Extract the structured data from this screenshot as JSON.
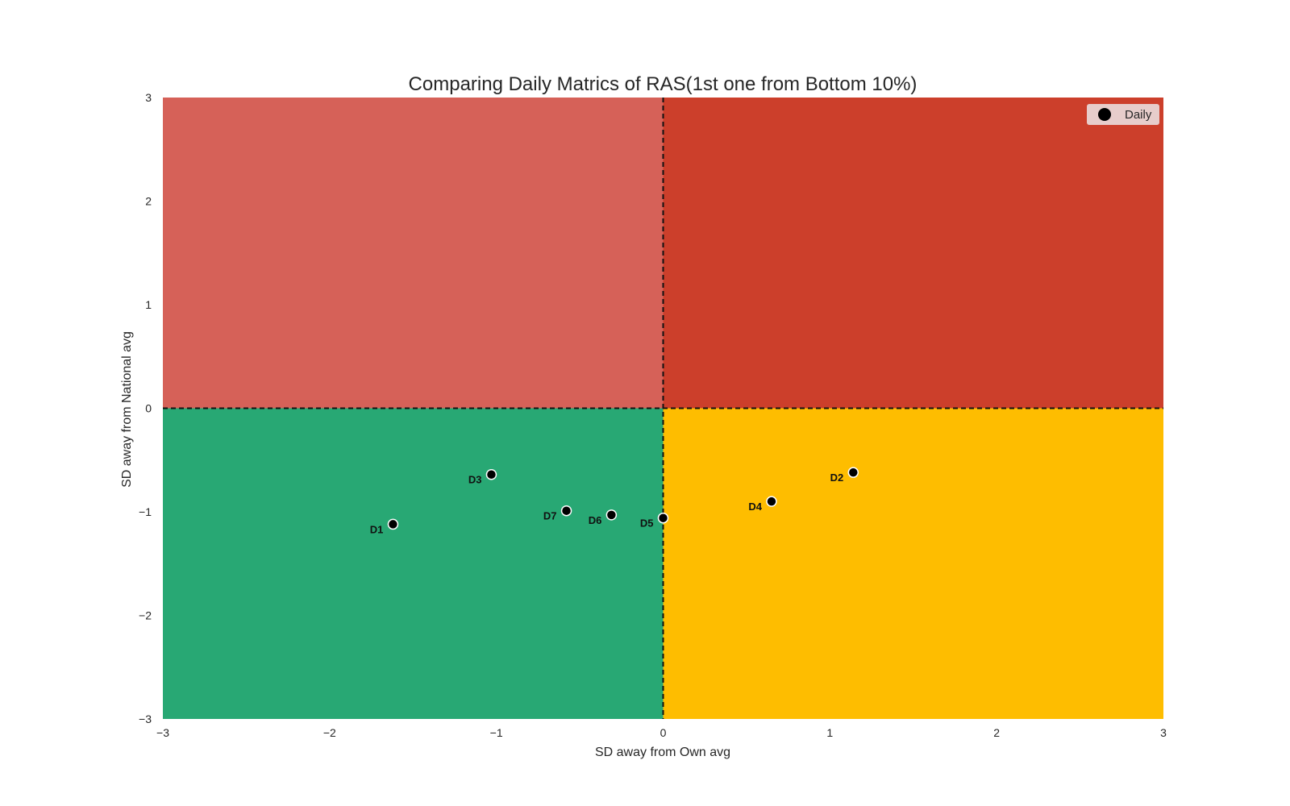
{
  "chart_data": {
    "type": "scatter",
    "title": "Comparing Daily Matrics of RAS(1st one from Bottom 10%)",
    "xlabel": "SD away from Own avg",
    "ylabel": "SD away from National avg",
    "xlim": [
      -3,
      3
    ],
    "ylim": [
      -3,
      3
    ],
    "xticks": [
      "−3",
      "−2",
      "−1",
      "0",
      "1",
      "2",
      "3"
    ],
    "yticks": [
      "−3",
      "−2",
      "−1",
      "0",
      "1",
      "2",
      "3"
    ],
    "grid": false,
    "legend": {
      "entries": [
        "Daily"
      ],
      "placement": "top-right"
    },
    "quadrants": [
      {
        "name": "top-left",
        "x": [
          -3,
          0
        ],
        "y": [
          0,
          3
        ],
        "color": "#d66158"
      },
      {
        "name": "top-right",
        "x": [
          0,
          3
        ],
        "y": [
          0,
          3
        ],
        "color": "#cc3f2b"
      },
      {
        "name": "bottom-left",
        "x": [
          -3,
          0
        ],
        "y": [
          -3,
          0
        ],
        "color": "#28a874"
      },
      {
        "name": "bottom-right",
        "x": [
          0,
          3
        ],
        "y": [
          -3,
          0
        ],
        "color": "#febd00"
      }
    ],
    "reference_lines": {
      "x": 0,
      "y": 0,
      "style": "dashed"
    },
    "series": [
      {
        "name": "Daily",
        "color": "#000000",
        "points": [
          {
            "label": "D1",
            "x": -1.62,
            "y": -1.12
          },
          {
            "label": "D2",
            "x": 1.14,
            "y": -0.62
          },
          {
            "label": "D3",
            "x": -1.03,
            "y": -0.64
          },
          {
            "label": "D4",
            "x": 0.65,
            "y": -0.9
          },
          {
            "label": "D5",
            "x": 0.0,
            "y": -1.06
          },
          {
            "label": "D6",
            "x": -0.31,
            "y": -1.03
          },
          {
            "label": "D7",
            "x": -0.58,
            "y": -0.99
          }
        ]
      }
    ]
  }
}
